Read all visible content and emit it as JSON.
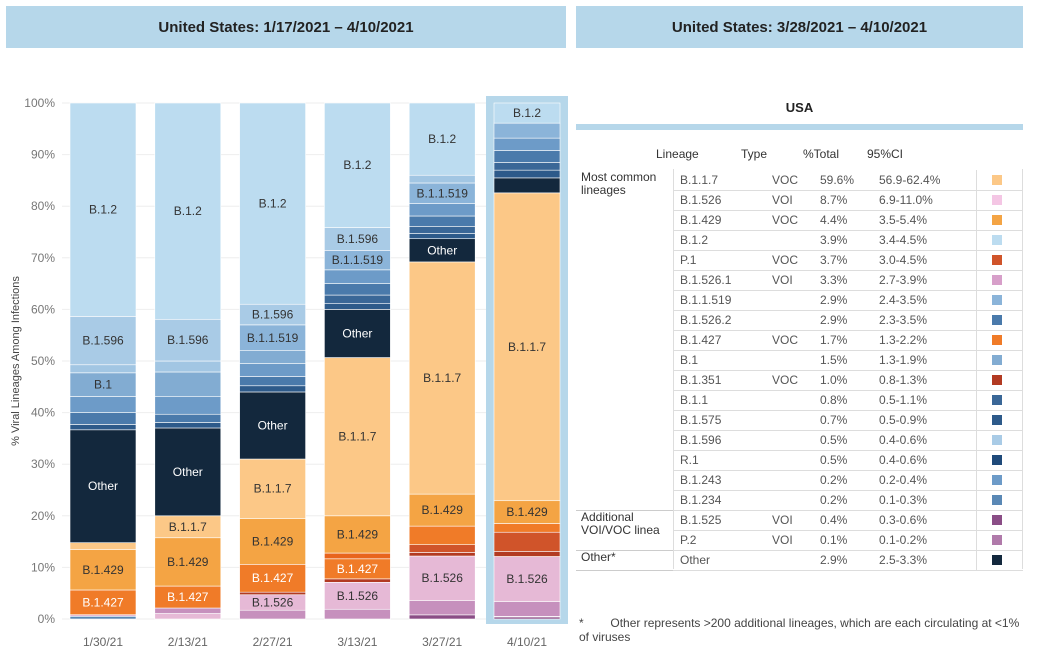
{
  "headers": {
    "left": "United States: 1/17/2021 – 4/10/2021",
    "right": "United States: 3/28/2021 – 4/10/2021"
  },
  "chart_data": {
    "type": "bar",
    "stacked": true,
    "ylabel": "% Viral Lineages Among Infections",
    "ylim": [
      0,
      100
    ],
    "yticks": [
      "0%",
      "10%",
      "20%",
      "30%",
      "40%",
      "50%",
      "60%",
      "70%",
      "80%",
      "90%",
      "100%"
    ],
    "categories": [
      "1/30/21",
      "2/13/21",
      "2/27/21",
      "3/13/21",
      "3/27/21",
      "4/10/21"
    ],
    "highlighted_category": "4/10/21",
    "bars": [
      {
        "date": "1/30/21",
        "segments": [
          {
            "name": "B.1.234",
            "value": 0.5,
            "color": "#5a88b5"
          },
          {
            "name": "B.1.526",
            "value": 0.3,
            "color": "#e6b9d6"
          },
          {
            "name": "B.1.427",
            "value": 4.6,
            "color": "#f07b28",
            "label": "B.1.427"
          },
          {
            "name": "B.1.429",
            "value": 7.5,
            "color": "#f4a444",
            "label": "B.1.429"
          },
          {
            "name": "B.1.1.7",
            "value": 1.3,
            "color": "#fcc887"
          },
          {
            "name": "Other",
            "value": 21.0,
            "color": "#13283d",
            "label": "Other"
          },
          {
            "name": "lineage",
            "value": 1.0,
            "color": "#2d5a8a"
          },
          {
            "name": "lineage",
            "value": 2.2,
            "color": "#4a7aab"
          },
          {
            "name": "lineage",
            "value": 3.0,
            "color": "#6d9bc8"
          },
          {
            "name": "B.1",
            "value": 4.4,
            "color": "#82acd2",
            "label": "B.1"
          },
          {
            "name": "lineage",
            "value": 1.5,
            "color": "#a2c6e3"
          },
          {
            "name": "B.1.596",
            "value": 9.0,
            "color": "#a9cbe6",
            "label": "B.1.596"
          },
          {
            "name": "B.1.2",
            "value": 39.7,
            "color": "#bcdcf0",
            "label": "B.1.2"
          }
        ]
      },
      {
        "date": "2/13/21",
        "segments": [
          {
            "name": "B.1.526",
            "value": 1.0,
            "color": "#e6b9d6"
          },
          {
            "name": "lineage",
            "value": 1.0,
            "color": "#c690bd"
          },
          {
            "name": "B.1.427",
            "value": 4.0,
            "color": "#f07b28",
            "label": "B.1.427"
          },
          {
            "name": "B.1.429",
            "value": 8.8,
            "color": "#f4a444",
            "label": "B.1.429"
          },
          {
            "name": "B.1.1.7",
            "value": 4.0,
            "color": "#fcc887",
            "label": "B.1.1.7"
          },
          {
            "name": "Other",
            "value": 16.0,
            "color": "#13283d",
            "label": "Other"
          },
          {
            "name": "lineage",
            "value": 1.0,
            "color": "#2d5a8a"
          },
          {
            "name": "lineage",
            "value": 1.5,
            "color": "#4a7aab"
          },
          {
            "name": "lineage",
            "value": 3.2,
            "color": "#6d9bc8"
          },
          {
            "name": "lineage",
            "value": 4.5,
            "color": "#82acd2"
          },
          {
            "name": "lineage",
            "value": 2.0,
            "color": "#a2c6e3"
          },
          {
            "name": "B.1.596",
            "value": 7.6,
            "color": "#a9cbe6",
            "label": "B.1.596"
          },
          {
            "name": "B.1.2",
            "value": 39.4,
            "color": "#bcdcf0",
            "label": "B.1.2"
          }
        ]
      },
      {
        "date": "2/27/21",
        "segments": [
          {
            "name": "lineage",
            "value": 1.7,
            "color": "#c690bd"
          },
          {
            "name": "B.1.526",
            "value": 3.0,
            "color": "#e6b9d6",
            "label": "B.1.526"
          },
          {
            "name": "B.1.351",
            "value": 0.5,
            "color": "#b23a22"
          },
          {
            "name": "B.1.427",
            "value": 5.4,
            "color": "#f07b28",
            "label": "B.1.427"
          },
          {
            "name": "B.1.429",
            "value": 8.9,
            "color": "#f4a444",
            "label": "B.1.429"
          },
          {
            "name": "B.1.1.7",
            "value": 11.5,
            "color": "#fcc887",
            "label": "B.1.1.7"
          },
          {
            "name": "Other",
            "value": 13.0,
            "color": "#13283d",
            "label": "Other"
          },
          {
            "name": "lineage",
            "value": 1.2,
            "color": "#2d5a8a"
          },
          {
            "name": "lineage",
            "value": 1.8,
            "color": "#4a7aab"
          },
          {
            "name": "lineage",
            "value": 2.5,
            "color": "#6d9bc8"
          },
          {
            "name": "lineage",
            "value": 2.5,
            "color": "#82acd2"
          },
          {
            "name": "B.1.1.519",
            "value": 5.0,
            "color": "#8bb4d9",
            "label": "B.1.1.519"
          },
          {
            "name": "B.1.596",
            "value": 4.0,
            "color": "#a9cbe6",
            "label": "B.1.596"
          },
          {
            "name": "B.1.2",
            "value": 39.0,
            "color": "#bcdcf0",
            "label": "B.1.2"
          }
        ]
      },
      {
        "date": "3/13/21",
        "segments": [
          {
            "name": "lineage",
            "value": 1.7,
            "color": "#c690bd"
          },
          {
            "name": "B.1.526",
            "value": 4.7,
            "color": "#e6b9d6",
            "label": "B.1.526"
          },
          {
            "name": "B.1.351",
            "value": 0.6,
            "color": "#b23a22"
          },
          {
            "name": "B.1.427",
            "value": 3.5,
            "color": "#f07b28",
            "label": "B.1.427"
          },
          {
            "name": "lineage",
            "value": 1.0,
            "color": "#e8641d"
          },
          {
            "name": "B.1.429",
            "value": 6.5,
            "color": "#f4a444",
            "label": "B.1.429"
          },
          {
            "name": "B.1.1.7",
            "value": 27.6,
            "color": "#fcc887",
            "label": "B.1.1.7"
          },
          {
            "name": "Other",
            "value": 8.4,
            "color": "#13283d",
            "label": "Other"
          },
          {
            "name": "lineage",
            "value": 1.0,
            "color": "#2d5a8a"
          },
          {
            "name": "lineage",
            "value": 1.5,
            "color": "#3a6797"
          },
          {
            "name": "lineage",
            "value": 2.0,
            "color": "#4a7aab"
          },
          {
            "name": "lineage",
            "value": 2.4,
            "color": "#6d9bc8"
          },
          {
            "name": "B.1.1.519",
            "value": 3.4,
            "color": "#8bb4d9",
            "label": "B.1.1.519"
          },
          {
            "name": "B.1.596",
            "value": 4.0,
            "color": "#a9cbe6",
            "label": "B.1.596"
          },
          {
            "name": "B.1.2",
            "value": 21.7,
            "color": "#bcdcf0",
            "label": "B.1.2"
          }
        ]
      },
      {
        "date": "3/27/21",
        "segments": [
          {
            "name": "lineage",
            "value": 0.8,
            "color": "#8a4d86"
          },
          {
            "name": "lineage",
            "value": 2.8,
            "color": "#c690bd"
          },
          {
            "name": "B.1.526",
            "value": 8.6,
            "color": "#e6b9d6",
            "label": "B.1.526"
          },
          {
            "name": "B.1.351",
            "value": 0.7,
            "color": "#b23a22"
          },
          {
            "name": "lineage",
            "value": 1.5,
            "color": "#d0542a"
          },
          {
            "name": "B.1.427",
            "value": 3.6,
            "color": "#f07b28"
          },
          {
            "name": "B.1.429",
            "value": 6.2,
            "color": "#f4a444",
            "label": "B.1.429"
          },
          {
            "name": "B.1.1.7",
            "value": 45.0,
            "color": "#fcc887",
            "label": "B.1.1.7"
          },
          {
            "name": "Other",
            "value": 4.5,
            "color": "#13283d",
            "label": "Other"
          },
          {
            "name": "lineage",
            "value": 1.0,
            "color": "#2d5a8a"
          },
          {
            "name": "lineage",
            "value": 1.4,
            "color": "#3a6797"
          },
          {
            "name": "lineage",
            "value": 2.0,
            "color": "#4a7aab"
          },
          {
            "name": "lineage",
            "value": 2.4,
            "color": "#6d9bc8"
          },
          {
            "name": "B.1.1.519",
            "value": 4.0,
            "color": "#8bb4d9",
            "label": "B.1.1.519"
          },
          {
            "name": "lineage",
            "value": 1.5,
            "color": "#a2c6e3"
          },
          {
            "name": "B.1.2",
            "value": 14.0,
            "color": "#bcdcf0",
            "label": "B.1.2"
          }
        ]
      },
      {
        "date": "4/10/21",
        "segments": [
          {
            "name": "B.1.525",
            "value": 0.4,
            "color": "#8a4d86"
          },
          {
            "name": "P.2",
            "value": 0.1,
            "color": "#b07aaa"
          },
          {
            "name": "lineage",
            "value": 2.9,
            "color": "#c690bd"
          },
          {
            "name": "B.1.526",
            "value": 8.7,
            "color": "#e6b9d6",
            "label": "B.1.526"
          },
          {
            "name": "B.1.351",
            "value": 1.0,
            "color": "#b23a22"
          },
          {
            "name": "P.1",
            "value": 3.7,
            "color": "#d0542a"
          },
          {
            "name": "B.1.427",
            "value": 1.7,
            "color": "#f07b28"
          },
          {
            "name": "B.1.429",
            "value": 4.4,
            "color": "#f4a444",
            "label": "B.1.429"
          },
          {
            "name": "B.1.1.7",
            "value": 59.6,
            "color": "#fcc887",
            "label": "B.1.1.7"
          },
          {
            "name": "Other",
            "value": 2.9,
            "color": "#13283d"
          },
          {
            "name": "lineage",
            "value": 1.5,
            "color": "#2d5a8a"
          },
          {
            "name": "lineage",
            "value": 1.5,
            "color": "#3a6797"
          },
          {
            "name": "lineage",
            "value": 2.3,
            "color": "#4a7aab"
          },
          {
            "name": "lineage",
            "value": 2.4,
            "color": "#6d9bc8"
          },
          {
            "name": "lineage",
            "value": 2.9,
            "color": "#8bb4d9"
          },
          {
            "name": "B.1.2",
            "value": 3.9,
            "color": "#bcdcf0",
            "label": "B.1.2"
          }
        ]
      }
    ]
  },
  "table": {
    "title": "USA",
    "columns": [
      "Lineage",
      "Type",
      "%Total",
      "95%CI"
    ],
    "groups": [
      {
        "label": "Most common lineages",
        "rows": [
          {
            "lineage": "B.1.1.7",
            "type": "VOC",
            "pct": "59.6%",
            "ci": "56.9-62.4%",
            "color": "#fcc887"
          },
          {
            "lineage": "B.1.526",
            "type": "VOI",
            "pct": "8.7%",
            "ci": "6.9-11.0%",
            "color": "#f4c6e4"
          },
          {
            "lineage": "B.1.429",
            "type": "VOC",
            "pct": "4.4%",
            "ci": "3.5-5.4%",
            "color": "#f4a444"
          },
          {
            "lineage": "B.1.2",
            "type": "",
            "pct": "3.9%",
            "ci": "3.4-4.5%",
            "color": "#bcdcf0"
          },
          {
            "lineage": "P.1",
            "type": "VOC",
            "pct": "3.7%",
            "ci": "3.0-4.5%",
            "color": "#d0542a"
          },
          {
            "lineage": "B.1.526.1",
            "type": "VOI",
            "pct": "3.3%",
            "ci": "2.7-3.9%",
            "color": "#d79fc9"
          },
          {
            "lineage": "B.1.1.519",
            "type": "",
            "pct": "2.9%",
            "ci": "2.4-3.5%",
            "color": "#8bb4d9"
          },
          {
            "lineage": "B.1.526.2",
            "type": "",
            "pct": "2.9%",
            "ci": "2.3-3.5%",
            "color": "#4a7aab"
          },
          {
            "lineage": "B.1.427",
            "type": "VOC",
            "pct": "1.7%",
            "ci": "1.3-2.2%",
            "color": "#f07b28"
          },
          {
            "lineage": "B.1",
            "type": "",
            "pct": "1.5%",
            "ci": "1.3-1.9%",
            "color": "#82acd2"
          },
          {
            "lineage": "B.1.351",
            "type": "VOC",
            "pct": "1.0%",
            "ci": "0.8-1.3%",
            "color": "#b23a22"
          },
          {
            "lineage": "B.1.1",
            "type": "",
            "pct": "0.8%",
            "ci": "0.5-1.1%",
            "color": "#3a6797"
          },
          {
            "lineage": "B.1.575",
            "type": "",
            "pct": "0.7%",
            "ci": "0.5-0.9%",
            "color": "#2d5a8a"
          },
          {
            "lineage": "B.1.596",
            "type": "",
            "pct": "0.5%",
            "ci": "0.4-0.6%",
            "color": "#a9cbe6"
          },
          {
            "lineage": "R.1",
            "type": "",
            "pct": "0.5%",
            "ci": "0.4-0.6%",
            "color": "#1f4a7a"
          },
          {
            "lineage": "B.1.243",
            "type": "",
            "pct": "0.2%",
            "ci": "0.2-0.4%",
            "color": "#6d9bc8"
          },
          {
            "lineage": "B.1.234",
            "type": "",
            "pct": "0.2%",
            "ci": "0.1-0.3%",
            "color": "#5a88b5"
          }
        ]
      },
      {
        "label": "Additional VOI/VOC linea",
        "rows": [
          {
            "lineage": "B.1.525",
            "type": "VOI",
            "pct": "0.4%",
            "ci": "0.3-0.6%",
            "color": "#8a4d86"
          },
          {
            "lineage": "P.2",
            "type": "VOI",
            "pct": "0.1%",
            "ci": "0.1-0.2%",
            "color": "#b07aaa"
          }
        ]
      },
      {
        "label": "Other*",
        "rows": [
          {
            "lineage": "Other",
            "type": "",
            "pct": "2.9%",
            "ci": "2.5-3.3%",
            "color": "#13283d"
          }
        ]
      }
    ]
  },
  "footnote": {
    "mark": "*",
    "text": "Other represents >200 additional lineages, which are each circulating at <1% of viruses"
  }
}
